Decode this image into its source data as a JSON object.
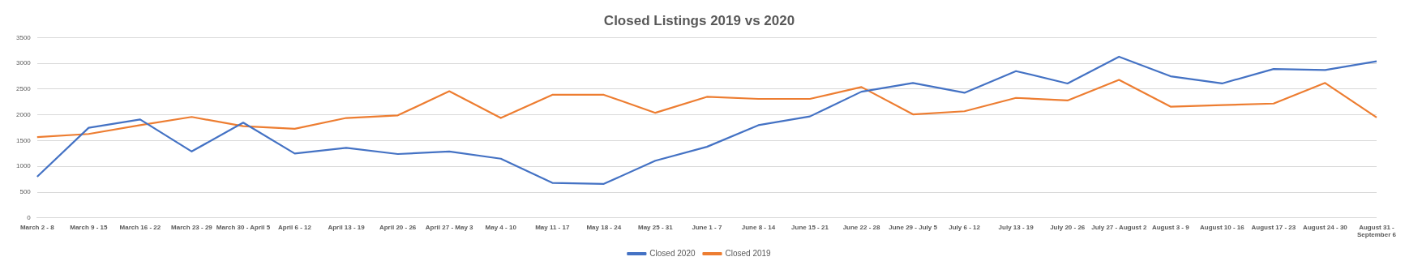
{
  "chart_data": {
    "type": "line",
    "title": "Closed Listings 2019 vs 2020",
    "categories": [
      "March 2 - 8",
      "March 9 - 15",
      "March 16 - 22",
      "March 23 - 29",
      "March 30 - April 5",
      "April 6 - 12",
      "April 13 - 19",
      "April 20 - 26",
      "April 27 - May 3",
      "May 4 - 10",
      "May 11 - 17",
      "May 18 - 24",
      "May 25 - 31",
      "June 1 - 7",
      "June 8 - 14",
      "June 15 - 21",
      "June 22 - 28",
      "June 29 - July 5",
      "July 6 - 12",
      "July 13 - 19",
      "July 20 - 26",
      "July 27 - August 2",
      "August 3 - 9",
      "August 10 - 16",
      "August 17 - 23",
      "August 24 - 30",
      "August 31 - September 6"
    ],
    "series": [
      {
        "name": "Closed 2020",
        "color": "#4472c4",
        "values": [
          800,
          1750,
          1910,
          1290,
          1850,
          1250,
          1360,
          1240,
          1290,
          1150,
          680,
          660,
          1110,
          1380,
          1800,
          1970,
          2450,
          2620,
          2430,
          2850,
          2610,
          3130,
          2750,
          2610,
          2890,
          2870,
          3040
        ]
      },
      {
        "name": "Closed 2019",
        "color": "#ed7d31",
        "values": [
          1570,
          1630,
          1800,
          1960,
          1780,
          1730,
          1940,
          1990,
          2460,
          1940,
          2390,
          2390,
          2040,
          2350,
          2310,
          2310,
          2540,
          2010,
          2070,
          2330,
          2280,
          2680,
          2160,
          2190,
          2220,
          2620,
          1950
        ]
      }
    ],
    "ylim": [
      0,
      3500
    ],
    "yticks": [
      0,
      500,
      1000,
      1500,
      2000,
      2500,
      3000,
      3500
    ],
    "grid": "y",
    "legend": "bottom",
    "marker": "none",
    "line_style": "solid"
  }
}
